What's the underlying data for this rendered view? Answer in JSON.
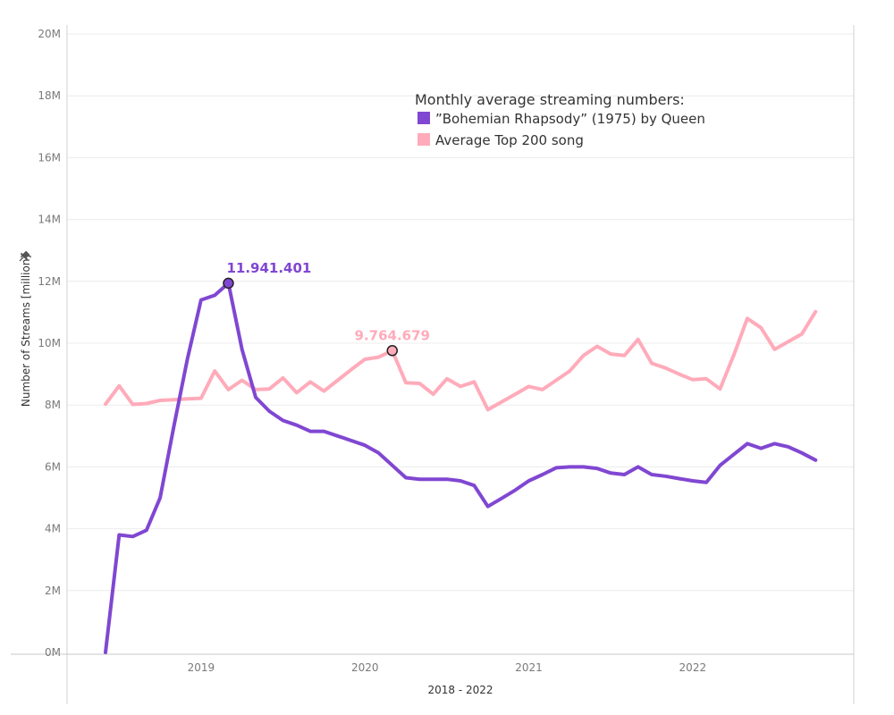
{
  "chart_data": {
    "type": "line",
    "xlabel": "2018 - 2022",
    "ylabel": "Number of Streams [million]",
    "ylim": [
      0,
      20
    ],
    "y_ticks": [
      0,
      2,
      4,
      6,
      8,
      10,
      12,
      14,
      16,
      18,
      20
    ],
    "y_tick_labels": [
      "0M",
      "2M",
      "4M",
      "6M",
      "8M",
      "10M",
      "12M",
      "14M",
      "16M",
      "18M",
      "20M"
    ],
    "x_ticks": [
      "2019",
      "2020",
      "2021",
      "2022"
    ],
    "xlim": [
      "2018-06",
      "2022-12"
    ],
    "grid": true,
    "legend": {
      "title": "Monthly average streaming numbers:",
      "placement": "top-center",
      "items": [
        "”Bohemian Rhapsody” (1975) by Queen",
        "Average Top 200 song"
      ]
    },
    "x": [
      "2018-06",
      "2018-07",
      "2018-08",
      "2018-09",
      "2018-10",
      "2018-11",
      "2018-12",
      "2019-01",
      "2019-02",
      "2019-03",
      "2019-04",
      "2019-05",
      "2019-06",
      "2019-07",
      "2019-08",
      "2019-09",
      "2019-10",
      "2019-11",
      "2019-12",
      "2020-01",
      "2020-02",
      "2020-03",
      "2020-04",
      "2020-05",
      "2020-06",
      "2020-07",
      "2020-08",
      "2020-09",
      "2020-10",
      "2020-11",
      "2020-12",
      "2021-01",
      "2021-02",
      "2021-03",
      "2021-04",
      "2021-05",
      "2021-06",
      "2021-07",
      "2021-08",
      "2021-09",
      "2021-10",
      "2021-11",
      "2021-12",
      "2022-01",
      "2022-02",
      "2022-03",
      "2022-04",
      "2022-05",
      "2022-06",
      "2022-07",
      "2022-08",
      "2022-09",
      "2022-10"
    ],
    "series": [
      {
        "name": "”Bohemian Rhapsody” (1975) by Queen",
        "color": "#8047d2",
        "values": [
          0.0,
          3.8,
          3.75,
          3.95,
          5.0,
          7.3,
          9.5,
          11.4,
          11.55,
          11.94,
          9.8,
          8.25,
          7.8,
          7.5,
          7.35,
          7.15,
          7.15,
          7.0,
          6.85,
          6.7,
          6.45,
          6.05,
          5.65,
          5.6,
          5.6,
          5.6,
          5.55,
          5.4,
          4.72,
          4.98,
          5.25,
          5.55,
          5.75,
          5.97,
          6.0,
          6.0,
          5.95,
          5.8,
          5.75,
          6.0,
          5.75,
          5.7,
          5.62,
          5.55,
          5.5,
          6.05,
          6.4,
          6.75,
          6.6,
          6.75,
          6.65,
          6.45,
          6.22
        ]
      },
      {
        "name": "Average Top 200 song",
        "color": "#ffabba",
        "values": [
          8.03,
          8.62,
          8.02,
          8.05,
          8.15,
          8.17,
          8.2,
          8.22,
          9.1,
          8.5,
          8.8,
          8.5,
          8.52,
          8.88,
          8.4,
          8.75,
          8.45,
          8.8,
          9.15,
          9.48,
          9.55,
          9.76,
          8.72,
          8.7,
          8.35,
          8.85,
          8.6,
          8.75,
          7.85,
          8.1,
          8.35,
          8.6,
          8.5,
          8.8,
          9.1,
          9.6,
          9.9,
          9.65,
          9.6,
          10.12,
          9.35,
          9.2,
          9.0,
          8.82,
          8.85,
          8.52,
          9.6,
          10.8,
          10.5,
          9.8,
          10.05,
          10.3,
          11.02
        ]
      }
    ],
    "annotations": [
      {
        "label": "11.941.401",
        "x": "2019-03",
        "y": 11.94,
        "series": 0,
        "color": "#8047d2"
      },
      {
        "label": "9.764.679",
        "x": "2020-03",
        "y": 9.76,
        "series": 1,
        "color": "#ffabba"
      }
    ]
  }
}
